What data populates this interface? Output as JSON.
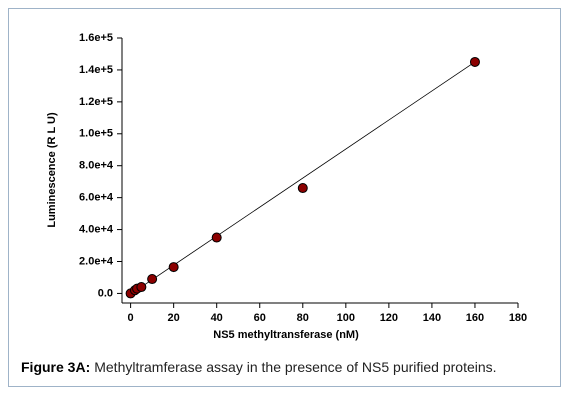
{
  "chart_data": {
    "type": "scatter",
    "x_label": "NS5 methyltransferase (nM)",
    "y_label": "Luminescence (R L U)",
    "series": [
      {
        "x": [
          0,
          2,
          3,
          5,
          10,
          20,
          40,
          80,
          160
        ],
        "values": [
          0,
          2000,
          3000,
          4000,
          9000,
          16500,
          35000,
          66000,
          145000
        ],
        "color": "#8b0000"
      }
    ],
    "fit_line": {
      "x": [
        0,
        160
      ],
      "values": [
        -500,
        145000
      ],
      "color": "#000000"
    },
    "xlim": [
      -4,
      180
    ],
    "xticks": [
      0,
      20,
      40,
      60,
      80,
      100,
      120,
      140,
      160,
      180
    ],
    "ylim": [
      -6000,
      160000
    ],
    "yticks": [
      {
        "value": 0,
        "label": "0.0"
      },
      {
        "value": 20000,
        "label": "2.0e+4"
      },
      {
        "value": 40000,
        "label": "4.0e+4"
      },
      {
        "value": 60000,
        "label": "6.0e+4"
      },
      {
        "value": 80000,
        "label": "8.0e+4"
      },
      {
        "value": 100000,
        "label": "1.0e+5"
      },
      {
        "value": 120000,
        "label": "1.2e+5"
      },
      {
        "value": 140000,
        "label": "1.4e+5"
      },
      {
        "value": 160000,
        "label": "1.6e+5"
      }
    ],
    "grid": false
  },
  "caption": {
    "label": "Figure 3A:",
    "text": "Methyltramferase assay in the presence of NS5 purified proteins."
  }
}
